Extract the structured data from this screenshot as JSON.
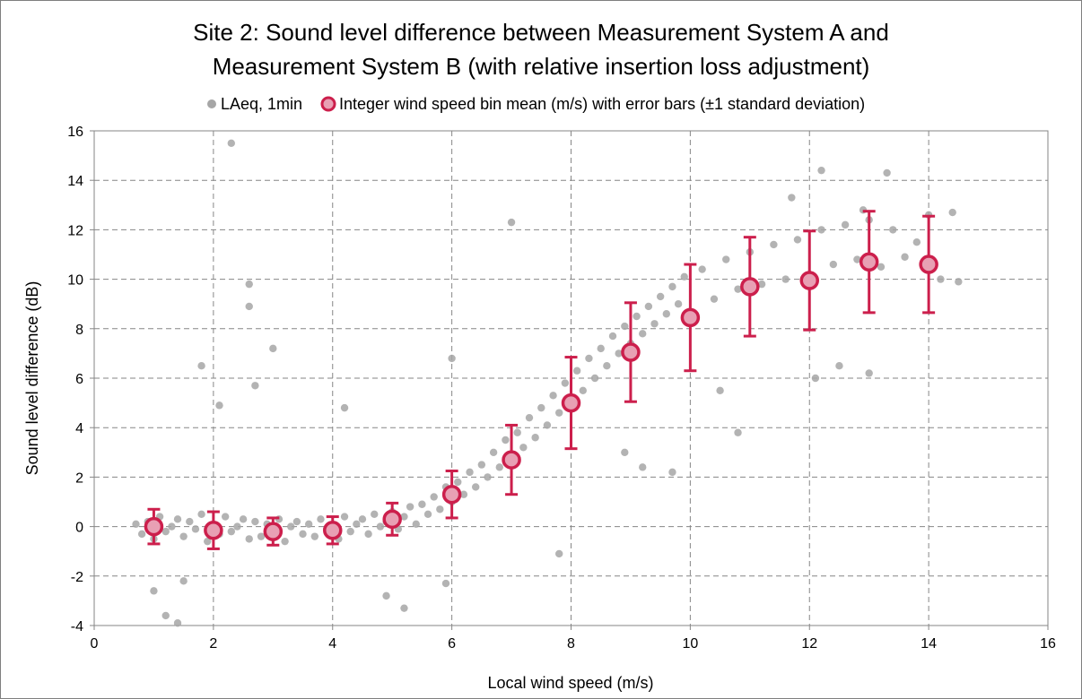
{
  "chart_data": {
    "type": "scatter",
    "title_line1": "Site 2: Sound level difference between Measurement System A and",
    "title_line2": "Measurement System B (with relative insertion loss adjustment)",
    "xlabel": "Local wind speed (m/s)",
    "ylabel": "Sound level difference (dB)",
    "xlim": [
      0,
      16
    ],
    "ylim": [
      -4,
      16
    ],
    "xticks": [
      0,
      2,
      4,
      6,
      8,
      10,
      12,
      14,
      16
    ],
    "yticks": [
      -4,
      -2,
      0,
      2,
      4,
      6,
      8,
      10,
      12,
      14,
      16
    ],
    "grid": true,
    "legend_position": "top",
    "series": [
      {
        "name": "LAeq, 1min",
        "marker": "circle",
        "color": "#a6a6a6",
        "points": [
          [
            0.7,
            0.1
          ],
          [
            0.8,
            -0.3
          ],
          [
            0.9,
            0.2
          ],
          [
            1.0,
            -0.5
          ],
          [
            1.1,
            0.4
          ],
          [
            1.2,
            -0.2
          ],
          [
            1.3,
            0.0
          ],
          [
            1.4,
            0.3
          ],
          [
            1.5,
            -0.4
          ],
          [
            1.6,
            0.2
          ],
          [
            1.7,
            -0.1
          ],
          [
            1.8,
            0.5
          ],
          [
            1.9,
            -0.6
          ],
          [
            2.0,
            0.1
          ],
          [
            2.1,
            -0.3
          ],
          [
            2.2,
            0.4
          ],
          [
            2.3,
            -0.2
          ],
          [
            2.4,
            0.0
          ],
          [
            2.5,
            0.3
          ],
          [
            2.6,
            -0.5
          ],
          [
            2.7,
            0.2
          ],
          [
            2.8,
            -0.4
          ],
          [
            2.9,
            0.1
          ],
          [
            3.0,
            -0.2
          ],
          [
            3.1,
            0.3
          ],
          [
            3.2,
            -0.6
          ],
          [
            3.3,
            0.0
          ],
          [
            3.4,
            0.2
          ],
          [
            3.5,
            -0.3
          ],
          [
            3.6,
            0.1
          ],
          [
            3.7,
            -0.4
          ],
          [
            3.8,
            0.3
          ],
          [
            3.9,
            -0.1
          ],
          [
            4.0,
            0.0
          ],
          [
            4.1,
            -0.5
          ],
          [
            4.2,
            0.4
          ],
          [
            4.3,
            -0.2
          ],
          [
            4.4,
            0.1
          ],
          [
            4.5,
            0.3
          ],
          [
            4.6,
            -0.3
          ],
          [
            4.7,
            0.5
          ],
          [
            4.8,
            0.0
          ],
          [
            4.9,
            0.2
          ],
          [
            5.0,
            0.6
          ],
          [
            5.1,
            -0.1
          ],
          [
            5.2,
            0.4
          ],
          [
            5.3,
            0.8
          ],
          [
            5.4,
            0.1
          ],
          [
            5.5,
            0.9
          ],
          [
            5.6,
            0.5
          ],
          [
            5.7,
            1.2
          ],
          [
            5.8,
            0.7
          ],
          [
            5.9,
            1.6
          ],
          [
            6.0,
            1.0
          ],
          [
            6.1,
            1.8
          ],
          [
            6.2,
            1.3
          ],
          [
            6.3,
            2.2
          ],
          [
            6.4,
            1.6
          ],
          [
            6.5,
            2.5
          ],
          [
            6.6,
            2.0
          ],
          [
            6.7,
            3.0
          ],
          [
            6.8,
            2.4
          ],
          [
            6.9,
            3.5
          ],
          [
            7.0,
            2.8
          ],
          [
            7.1,
            3.8
          ],
          [
            7.2,
            3.2
          ],
          [
            7.3,
            4.4
          ],
          [
            7.4,
            3.6
          ],
          [
            7.5,
            4.8
          ],
          [
            7.6,
            4.1
          ],
          [
            7.7,
            5.3
          ],
          [
            7.8,
            4.6
          ],
          [
            7.9,
            5.8
          ],
          [
            8.0,
            5.0
          ],
          [
            8.1,
            6.3
          ],
          [
            8.2,
            5.5
          ],
          [
            8.3,
            6.8
          ],
          [
            8.4,
            6.0
          ],
          [
            8.5,
            7.2
          ],
          [
            8.6,
            6.5
          ],
          [
            8.7,
            7.7
          ],
          [
            8.8,
            7.0
          ],
          [
            8.9,
            8.1
          ],
          [
            9.0,
            7.4
          ],
          [
            9.1,
            8.5
          ],
          [
            9.2,
            7.8
          ],
          [
            9.3,
            8.9
          ],
          [
            9.4,
            8.2
          ],
          [
            9.5,
            9.3
          ],
          [
            9.6,
            8.6
          ],
          [
            9.7,
            9.7
          ],
          [
            9.8,
            9.0
          ],
          [
            9.9,
            10.1
          ],
          [
            10.0,
            8.5
          ],
          [
            10.2,
            10.4
          ],
          [
            10.4,
            9.2
          ],
          [
            10.6,
            10.8
          ],
          [
            10.8,
            9.6
          ],
          [
            11.0,
            11.1
          ],
          [
            11.2,
            9.8
          ],
          [
            11.4,
            11.4
          ],
          [
            11.6,
            10.0
          ],
          [
            11.8,
            11.6
          ],
          [
            12.0,
            10.2
          ],
          [
            12.2,
            12.0
          ],
          [
            12.4,
            10.6
          ],
          [
            12.6,
            12.2
          ],
          [
            12.8,
            10.8
          ],
          [
            13.0,
            12.4
          ],
          [
            13.2,
            10.5
          ],
          [
            13.4,
            12.0
          ],
          [
            13.6,
            10.9
          ],
          [
            13.8,
            11.5
          ],
          [
            14.0,
            12.6
          ],
          [
            14.2,
            10.0
          ],
          [
            14.4,
            12.7
          ],
          [
            14.5,
            9.9
          ],
          [
            2.3,
            15.5
          ],
          [
            2.6,
            9.8
          ],
          [
            2.6,
            8.9
          ],
          [
            3.0,
            7.2
          ],
          [
            1.8,
            6.5
          ],
          [
            2.7,
            5.7
          ],
          [
            2.1,
            4.9
          ],
          [
            4.2,
            4.8
          ],
          [
            1.4,
            -3.9
          ],
          [
            1.2,
            -3.6
          ],
          [
            5.2,
            -3.3
          ],
          [
            4.9,
            -2.8
          ],
          [
            7.8,
            -1.1
          ],
          [
            5.9,
            -2.3
          ],
          [
            1.0,
            -2.6
          ],
          [
            1.5,
            -2.2
          ],
          [
            6.0,
            6.8
          ],
          [
            7.0,
            12.3
          ],
          [
            10.8,
            3.8
          ],
          [
            12.2,
            14.4
          ],
          [
            12.9,
            12.8
          ],
          [
            13.3,
            14.3
          ],
          [
            11.7,
            13.3
          ],
          [
            12.1,
            6.0
          ],
          [
            12.5,
            6.5
          ],
          [
            13.0,
            6.2
          ],
          [
            9.7,
            2.2
          ],
          [
            9.2,
            2.4
          ],
          [
            8.9,
            3.0
          ],
          [
            10.5,
            5.5
          ]
        ]
      },
      {
        "name": "Integer wind speed bin mean (m/s) with error bars (±1 standard deviation)",
        "marker": "circle",
        "color": "#cc1f4c",
        "points": [
          {
            "x": 1,
            "y": 0.0,
            "sd": 0.7
          },
          {
            "x": 2,
            "y": -0.15,
            "sd": 0.75
          },
          {
            "x": 3,
            "y": -0.2,
            "sd": 0.55
          },
          {
            "x": 4,
            "y": -0.15,
            "sd": 0.55
          },
          {
            "x": 5,
            "y": 0.3,
            "sd": 0.65
          },
          {
            "x": 6,
            "y": 1.3,
            "sd": 0.95
          },
          {
            "x": 7,
            "y": 2.7,
            "sd": 1.4
          },
          {
            "x": 8,
            "y": 5.0,
            "sd": 1.85
          },
          {
            "x": 9,
            "y": 7.05,
            "sd": 2.0
          },
          {
            "x": 10,
            "y": 8.45,
            "sd": 2.15
          },
          {
            "x": 11,
            "y": 9.7,
            "sd": 2.0
          },
          {
            "x": 12,
            "y": 9.95,
            "sd": 2.0
          },
          {
            "x": 13,
            "y": 10.7,
            "sd": 2.05
          },
          {
            "x": 14,
            "y": 10.6,
            "sd": 1.95
          }
        ]
      }
    ]
  }
}
